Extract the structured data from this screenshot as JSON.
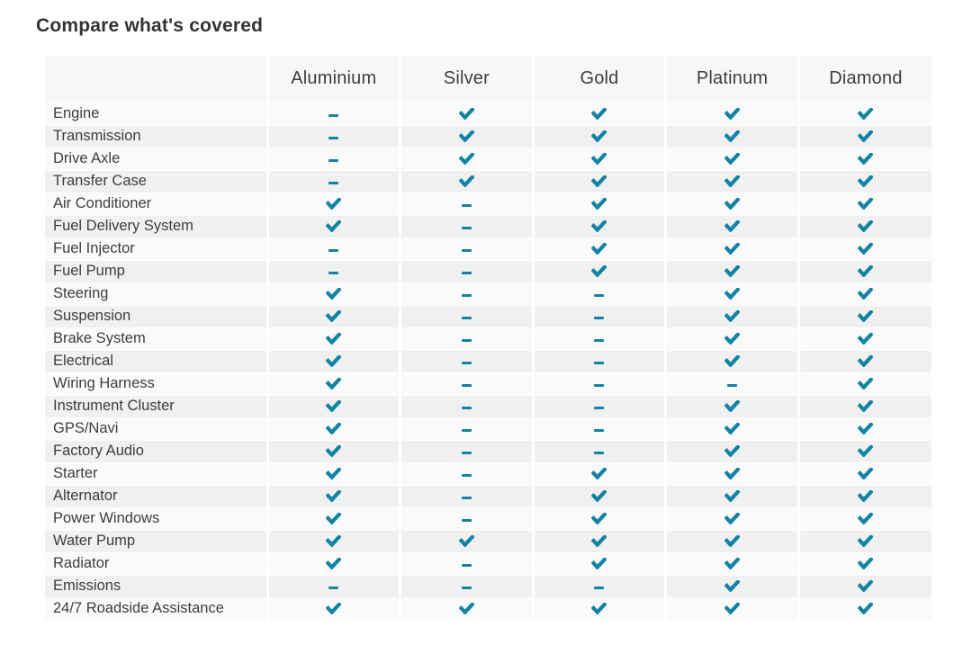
{
  "page": {
    "title": "Compare what's covered"
  },
  "colors": {
    "accent": "#1183a5",
    "header_background": "#f7f7f7",
    "row_odd_background": "#fafafa",
    "row_even_background": "#f0f0f0",
    "text": "#3d3d3d"
  },
  "icons": {
    "covered": "check-icon",
    "not_covered": "dash-icon"
  },
  "table": {
    "plans": [
      "Aluminium",
      "Silver",
      "Gold",
      "Platinum",
      "Diamond"
    ],
    "rows": [
      {
        "label": "Engine",
        "covered": [
          false,
          true,
          true,
          true,
          true
        ]
      },
      {
        "label": "Transmission",
        "covered": [
          false,
          true,
          true,
          true,
          true
        ]
      },
      {
        "label": "Drive Axle",
        "covered": [
          false,
          true,
          true,
          true,
          true
        ]
      },
      {
        "label": "Transfer Case",
        "covered": [
          false,
          true,
          true,
          true,
          true
        ]
      },
      {
        "label": "Air Conditioner",
        "covered": [
          true,
          false,
          true,
          true,
          true
        ]
      },
      {
        "label": "Fuel Delivery System",
        "covered": [
          true,
          false,
          true,
          true,
          true
        ]
      },
      {
        "label": "Fuel Injector",
        "covered": [
          false,
          false,
          true,
          true,
          true
        ]
      },
      {
        "label": "Fuel Pump",
        "covered": [
          false,
          false,
          true,
          true,
          true
        ]
      },
      {
        "label": "Steering",
        "covered": [
          true,
          false,
          false,
          true,
          true
        ]
      },
      {
        "label": "Suspension",
        "covered": [
          true,
          false,
          false,
          true,
          true
        ]
      },
      {
        "label": "Brake System",
        "covered": [
          true,
          false,
          false,
          true,
          true
        ]
      },
      {
        "label": "Electrical",
        "covered": [
          true,
          false,
          false,
          true,
          true
        ]
      },
      {
        "label": "Wiring Harness",
        "covered": [
          true,
          false,
          false,
          false,
          true
        ]
      },
      {
        "label": "Instrument Cluster",
        "covered": [
          true,
          false,
          false,
          true,
          true
        ]
      },
      {
        "label": "GPS/Navi",
        "covered": [
          true,
          false,
          false,
          true,
          true
        ]
      },
      {
        "label": "Factory Audio",
        "covered": [
          true,
          false,
          false,
          true,
          true
        ]
      },
      {
        "label": "Starter",
        "covered": [
          true,
          false,
          true,
          true,
          true
        ]
      },
      {
        "label": "Alternator",
        "covered": [
          true,
          false,
          true,
          true,
          true
        ]
      },
      {
        "label": "Power Windows",
        "covered": [
          true,
          false,
          true,
          true,
          true
        ]
      },
      {
        "label": "Water Pump",
        "covered": [
          true,
          true,
          true,
          true,
          true
        ]
      },
      {
        "label": "Radiator",
        "covered": [
          true,
          false,
          true,
          true,
          true
        ]
      },
      {
        "label": "Emissions",
        "covered": [
          false,
          false,
          false,
          true,
          true
        ]
      },
      {
        "label": "24/7 Roadside Assistance",
        "covered": [
          true,
          true,
          true,
          true,
          true
        ]
      }
    ]
  }
}
